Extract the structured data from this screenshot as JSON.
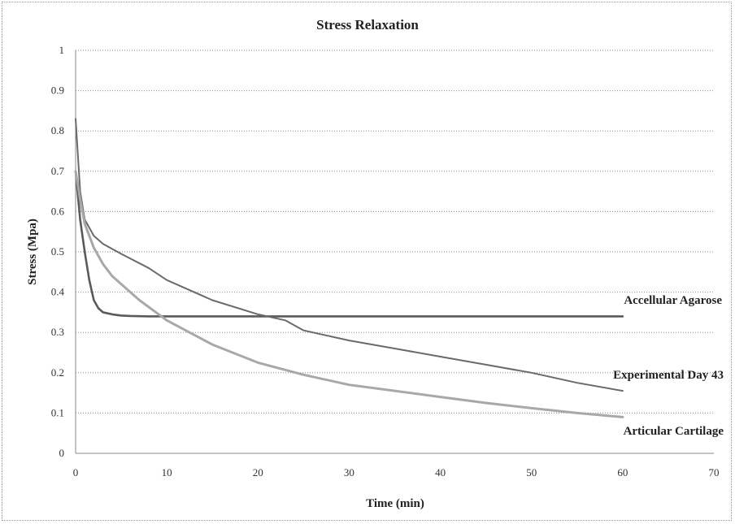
{
  "chart_data": {
    "type": "line",
    "title": "Stress Relaxation",
    "xlabel": "Time (min)",
    "ylabel": "Stress (Mpa)",
    "xlim": [
      0,
      70
    ],
    "ylim": [
      0,
      1
    ],
    "xticks": [
      0,
      10,
      20,
      30,
      40,
      50,
      60,
      70
    ],
    "yticks": [
      0,
      0.1,
      0.2,
      0.3,
      0.4,
      0.5,
      0.6,
      0.7,
      0.8,
      0.9,
      1
    ],
    "grid": true,
    "legend": "inline labels",
    "series": [
      {
        "name": "Accellular Agarose",
        "color": "#5a5a5a",
        "x": [
          0,
          0.5,
          1,
          1.5,
          2,
          2.5,
          3,
          4,
          5,
          6,
          8,
          10,
          20,
          30,
          40,
          50,
          60
        ],
        "y": [
          0.7,
          0.58,
          0.5,
          0.43,
          0.38,
          0.36,
          0.35,
          0.345,
          0.342,
          0.341,
          0.34,
          0.34,
          0.34,
          0.34,
          0.34,
          0.34,
          0.34
        ]
      },
      {
        "name": "Experimental Day 43",
        "color": "#6a6a6a",
        "x": [
          0,
          0.5,
          1,
          2,
          3,
          5,
          8,
          10,
          15,
          20,
          23,
          25,
          30,
          35,
          40,
          45,
          50,
          55,
          60
        ],
        "y": [
          0.83,
          0.65,
          0.58,
          0.54,
          0.52,
          0.495,
          0.46,
          0.43,
          0.38,
          0.345,
          0.33,
          0.305,
          0.28,
          0.26,
          0.24,
          0.22,
          0.2,
          0.175,
          0.155
        ]
      },
      {
        "name": "Articular Cartilage",
        "color": "#a8a8a8",
        "x": [
          0,
          0.5,
          1,
          2,
          3,
          4,
          5,
          7,
          10,
          15,
          20,
          25,
          30,
          35,
          40,
          45,
          50,
          55,
          60
        ],
        "y": [
          0.7,
          0.63,
          0.57,
          0.51,
          0.47,
          0.44,
          0.42,
          0.38,
          0.33,
          0.27,
          0.225,
          0.195,
          0.17,
          0.155,
          0.14,
          0.125,
          0.112,
          0.1,
          0.09
        ]
      }
    ]
  }
}
